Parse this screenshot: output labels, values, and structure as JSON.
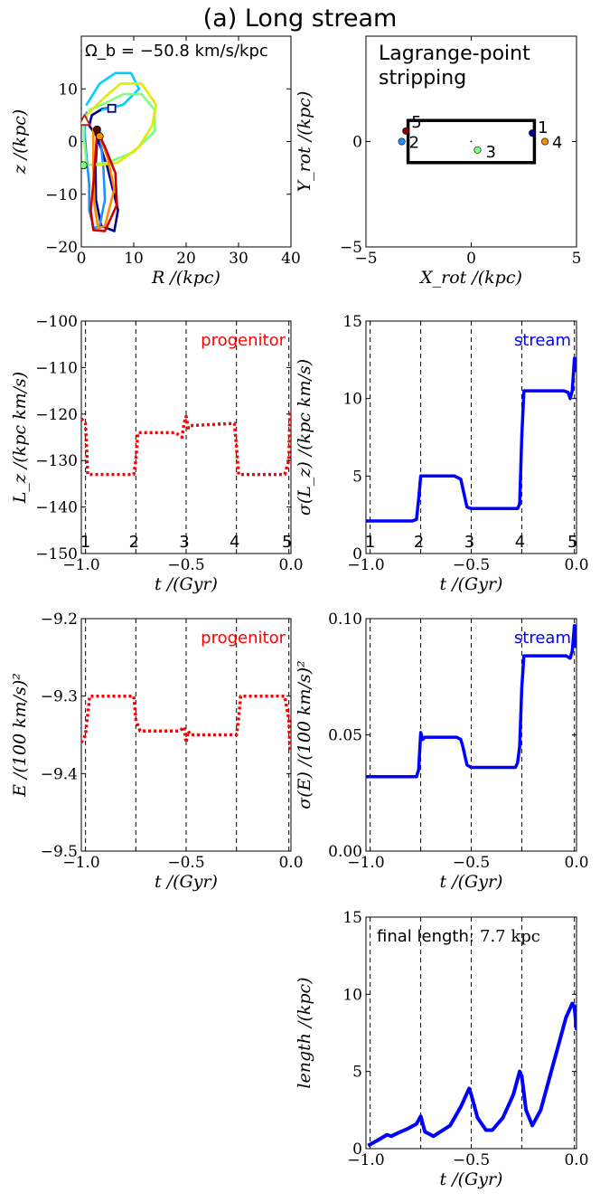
{
  "figure_title": "(a) Long stream",
  "chart_data": [
    {
      "id": "orbit",
      "type": "line",
      "annotation": "Ω_b = −50.8 km/s/kpc",
      "xlabel": "R /(kpc)",
      "ylabel": "z /(kpc)",
      "xlim": [
        0,
        40
      ],
      "ylim": [
        -20,
        20
      ],
      "xticks": [
        "0",
        "10",
        "20",
        "30",
        "40"
      ],
      "yticks": [
        "−20",
        "−10",
        "0",
        "10"
      ],
      "segments": [
        {
          "color": "#00008b",
          "points": [
            [
              6,
              6.5
            ],
            [
              4,
              6.2
            ],
            [
              2,
              5
            ],
            [
              1.5,
              3
            ],
            [
              3,
              1
            ],
            [
              5,
              -5
            ],
            [
              7,
              -13
            ],
            [
              6.3,
              -17
            ],
            [
              3.8,
              -16
            ],
            [
              2.8,
              -11
            ],
            [
              2.7,
              -5
            ],
            [
              3,
              0
            ],
            [
              3.3,
              2
            ]
          ]
        },
        {
          "color": "#1e90ff",
          "points": [
            [
              1,
              5.5
            ],
            [
              0.6,
              2
            ],
            [
              1,
              -3
            ],
            [
              1.5,
              -8
            ],
            [
              1.5,
              -13
            ],
            [
              2.4,
              -16.5
            ],
            [
              3.5,
              -16
            ],
            [
              4.5,
              -11
            ],
            [
              4.2,
              -5
            ],
            [
              3.7,
              0
            ],
            [
              3.5,
              2
            ]
          ]
        },
        {
          "color": "#00cfff",
          "points": [
            [
              1,
              7
            ],
            [
              3.5,
              11
            ],
            [
              6.5,
              13
            ],
            [
              9.5,
              13
            ],
            [
              11,
              10
            ],
            [
              8,
              7
            ],
            [
              4,
              6
            ]
          ]
        },
        {
          "color": "#7fff7f",
          "points": [
            [
              0.5,
              4
            ],
            [
              0.5,
              0.5
            ],
            [
              1,
              -4.5
            ],
            [
              5,
              -4
            ],
            [
              10,
              -2
            ],
            [
              14,
              2
            ],
            [
              14,
              6
            ],
            [
              11.5,
              9
            ],
            [
              8,
              9
            ],
            [
              4,
              7
            ],
            [
              1.5,
              6
            ]
          ]
        },
        {
          "color": "#e8e800",
          "points": [
            [
              1,
              5
            ],
            [
              4,
              8
            ],
            [
              7.5,
              11
            ],
            [
              11.5,
              11
            ],
            [
              14.3,
              7
            ],
            [
              13.5,
              3
            ],
            [
              11,
              -1
            ],
            [
              7,
              -4
            ],
            [
              3,
              -4.5
            ]
          ]
        },
        {
          "color": "#ff8c00",
          "points": [
            [
              2.3,
              2.5
            ],
            [
              2.3,
              -5
            ],
            [
              2.5,
              -12
            ],
            [
              3.2,
              -16.5
            ],
            [
              4.5,
              -16
            ],
            [
              6.3,
              -9
            ],
            [
              5,
              -3
            ],
            [
              3.8,
              0.3
            ]
          ]
        },
        {
          "color": "#cc0000",
          "points": [
            [
              3,
              1.5
            ],
            [
              2.4,
              -7
            ],
            [
              1.8,
              -13
            ],
            [
              2.3,
              -16.8
            ],
            [
              4.5,
              -17
            ],
            [
              6.8,
              -12
            ],
            [
              6.5,
              -6
            ],
            [
              4.5,
              -1
            ],
            [
              3.2,
              1.7
            ]
          ]
        }
      ],
      "markers": [
        {
          "shape": "square",
          "x": 5.8,
          "y": 6.3,
          "color": "#00008b"
        },
        {
          "shape": "triangle",
          "x": 0.6,
          "y": 4,
          "color": "#b22222"
        },
        {
          "shape": "circle",
          "x": 3,
          "y": 2.3,
          "color": "#4a0e0e"
        },
        {
          "shape": "circle",
          "x": 3.5,
          "y": 1,
          "color": "#ff8c00"
        },
        {
          "shape": "circle",
          "x": 0.4,
          "y": -4.5,
          "color": "#7fff7f"
        }
      ]
    },
    {
      "id": "lagrange",
      "type": "scatter",
      "annotation": "Lagrange-point stripping",
      "xlabel": "X_rot /(kpc)",
      "ylabel": "Y_rot /(kpc)",
      "xlim": [
        -5,
        5
      ],
      "ylim": [
        -5,
        5
      ],
      "xticks": [
        "−5",
        "0",
        "5"
      ],
      "yticks": [
        "−5",
        "0"
      ],
      "box": {
        "x0": -3,
        "x1": 3,
        "y0": -1,
        "y1": 1
      },
      "points": [
        {
          "label": "1",
          "x": 2.9,
          "y": 0.4,
          "color": "#00008b"
        },
        {
          "label": "2",
          "x": -3.3,
          "y": 0,
          "color": "#1e90ff"
        },
        {
          "label": "3",
          "x": 0.3,
          "y": -0.4,
          "color": "#7fff7f"
        },
        {
          "label": "4",
          "x": 3.5,
          "y": 0,
          "color": "#ff8c00"
        },
        {
          "label": "5",
          "x": -3.1,
          "y": 0.5,
          "color": "#8b0000"
        }
      ]
    },
    {
      "id": "lz_prog",
      "type": "line",
      "label": "progenitor",
      "label_color": "#ff0000",
      "style": "dotted",
      "line_color": "#ff0000",
      "xlabel": "t /(Gyr)",
      "ylabel": "L_z /(kpc km/s)",
      "xlim": [
        -1.0,
        0.0
      ],
      "ylim": [
        -150,
        -100
      ],
      "xticks": [
        "−1.0",
        "−0.5",
        "0.0"
      ],
      "yticks": [
        "−150",
        "−140",
        "−130",
        "−120",
        "−110",
        "−100"
      ],
      "vlines": [
        -0.98,
        -0.74,
        -0.5,
        -0.26,
        -0.01
      ],
      "vline_labels": [
        "1",
        "2",
        "3",
        "4",
        "5"
      ],
      "x": [
        -1.0,
        -0.98,
        -0.97,
        -0.75,
        -0.74,
        -0.73,
        -0.55,
        -0.52,
        -0.51,
        -0.5,
        -0.49,
        -0.48,
        -0.27,
        -0.26,
        -0.25,
        -0.03,
        -0.01,
        -0.005
      ],
      "y": [
        -121,
        -122,
        -133,
        -133,
        -130,
        -124,
        -124,
        -125,
        -122,
        -120.5,
        -123,
        -122.5,
        -122,
        -127,
        -133,
        -133,
        -130,
        -119.5
      ]
    },
    {
      "id": "lz_stream",
      "type": "line",
      "label": "stream",
      "label_color": "#0000ff",
      "style": "solid",
      "line_color": "#0000ff",
      "xlabel": "t /(Gyr)",
      "ylabel": "σ(L_z) /(kpc km/s)",
      "xlim": [
        -1.0,
        0.0
      ],
      "ylim": [
        0,
        15
      ],
      "xticks": [
        "−1.0",
        "−0.5",
        "0.0"
      ],
      "yticks": [
        "0",
        "5",
        "10",
        "15"
      ],
      "vlines": [
        -0.98,
        -0.74,
        -0.5,
        -0.26,
        -0.01
      ],
      "vline_labels": [
        "1",
        "2",
        "3",
        "4",
        "5"
      ],
      "x": [
        -1.0,
        -0.78,
        -0.76,
        -0.75,
        -0.74,
        -0.6,
        -0.58,
        -0.55,
        -0.52,
        -0.5,
        -0.3,
        -0.28,
        -0.27,
        -0.26,
        -0.25,
        -0.06,
        -0.04,
        -0.03,
        -0.02,
        -0.01,
        -0.005,
        0.0
      ],
      "y": [
        2.1,
        2.1,
        2.2,
        3.5,
        5.0,
        5.0,
        5.0,
        4.8,
        3.0,
        2.9,
        2.9,
        2.9,
        3.2,
        7.5,
        10.5,
        10.5,
        10.4,
        10.0,
        10.5,
        12.6,
        11.8,
        12.4
      ]
    },
    {
      "id": "e_prog",
      "type": "line",
      "label": "progenitor",
      "label_color": "#ff0000",
      "style": "dotted",
      "line_color": "#ff0000",
      "xlabel": "t /(Gyr)",
      "ylabel": "E /(100 km/s)²",
      "xlim": [
        -1.0,
        0.0
      ],
      "ylim": [
        -9.5,
        -9.2
      ],
      "xticks": [
        "−1.0",
        "−0.5",
        "0.0"
      ],
      "yticks": [
        "−9.5",
        "−9.4",
        "−9.3",
        "−9.2"
      ],
      "vlines": [
        -0.98,
        -0.74,
        -0.5,
        -0.26,
        -0.01
      ],
      "x": [
        -1.0,
        -0.98,
        -0.96,
        -0.75,
        -0.74,
        -0.72,
        -0.53,
        -0.51,
        -0.5,
        -0.49,
        -0.48,
        -0.26,
        -0.25,
        -0.24,
        -0.03,
        -0.01,
        -0.005
      ],
      "y": [
        -9.36,
        -9.35,
        -9.3,
        -9.3,
        -9.33,
        -9.345,
        -9.345,
        -9.34,
        -9.36,
        -9.345,
        -9.35,
        -9.35,
        -9.33,
        -9.3,
        -9.3,
        -9.33,
        -9.37
      ]
    },
    {
      "id": "e_stream",
      "type": "line",
      "label": "stream",
      "label_color": "#0000ff",
      "style": "solid",
      "line_color": "#0000ff",
      "xlabel": "t /(Gyr)",
      "ylabel": "σ(E) /(100 km/s)²",
      "xlim": [
        -1.0,
        0.0
      ],
      "ylim": [
        0.0,
        0.1
      ],
      "xticks": [
        "−1.0",
        "−0.5",
        "0.0"
      ],
      "yticks": [
        "0.00",
        "0.05",
        "0.10"
      ],
      "vlines": [
        -0.98,
        -0.74,
        -0.5,
        -0.26,
        -0.01
      ],
      "x": [
        -1.0,
        -0.76,
        -0.75,
        -0.74,
        -0.73,
        -0.72,
        -0.57,
        -0.55,
        -0.54,
        -0.52,
        -0.5,
        -0.29,
        -0.28,
        -0.27,
        -0.26,
        -0.25,
        -0.05,
        -0.03,
        -0.02,
        -0.01,
        -0.005,
        0.0
      ],
      "y": [
        0.032,
        0.032,
        0.035,
        0.051,
        0.048,
        0.049,
        0.049,
        0.048,
        0.045,
        0.037,
        0.036,
        0.036,
        0.038,
        0.045,
        0.07,
        0.084,
        0.084,
        0.083,
        0.086,
        0.097,
        0.088,
        0.095
      ]
    },
    {
      "id": "length",
      "type": "line",
      "label": "final length:",
      "label_value": "7.7 kpc",
      "label_color": "#000000",
      "style": "solid",
      "line_color": "#0000ff",
      "xlabel": "t /(Gyr)",
      "ylabel": "length /(kpc)",
      "xlim": [
        -1.0,
        0.0
      ],
      "ylim": [
        0,
        15
      ],
      "xticks": [
        "−1.0",
        "−0.5",
        "0.0"
      ],
      "yticks": [
        "0",
        "5",
        "10",
        "15"
      ],
      "vlines": [
        -0.98,
        -0.74,
        -0.5,
        -0.26,
        -0.01
      ],
      "x": [
        -0.99,
        -0.95,
        -0.9,
        -0.88,
        -0.85,
        -0.8,
        -0.76,
        -0.74,
        -0.72,
        -0.68,
        -0.6,
        -0.55,
        -0.51,
        -0.5,
        -0.47,
        -0.43,
        -0.4,
        -0.35,
        -0.3,
        -0.27,
        -0.26,
        -0.24,
        -0.21,
        -0.17,
        -0.13,
        -0.08,
        -0.05,
        -0.02,
        -0.01,
        0.0
      ],
      "y": [
        0.2,
        0.5,
        0.9,
        0.8,
        1.0,
        1.3,
        1.6,
        2.1,
        1.1,
        0.8,
        1.5,
        2.7,
        3.9,
        3.5,
        2.0,
        1.2,
        1.2,
        2.0,
        3.5,
        5.0,
        4.7,
        2.5,
        1.5,
        2.5,
        4.5,
        7.0,
        8.5,
        9.4,
        9.2,
        7.7
      ]
    }
  ]
}
